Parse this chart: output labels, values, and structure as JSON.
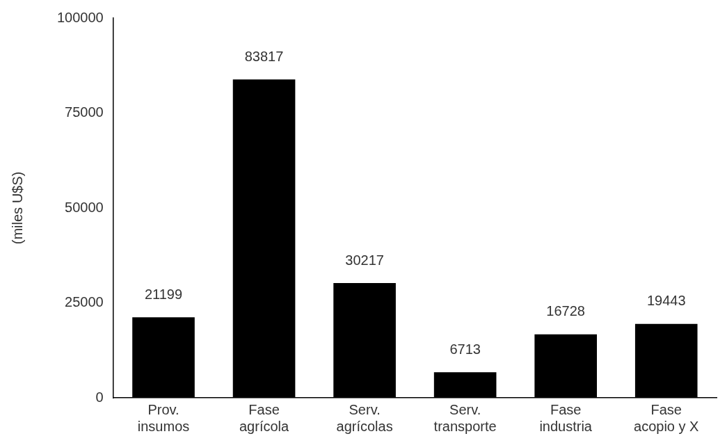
{
  "chart_data": {
    "type": "bar",
    "ylabel": "(miles U$S)",
    "categories": [
      "Prov.\ninsumos",
      "Fase\nagrícola",
      "Serv.\nagrícolas",
      "Serv.\ntransporte",
      "Fase\nindustria",
      "Fase\nacopio y X"
    ],
    "values": [
      21199,
      83817,
      30217,
      6713,
      16728,
      19443
    ],
    "color": "#000000",
    "ylim": [
      0,
      100000
    ],
    "yticks": [
      0,
      25000,
      50000,
      75000,
      100000
    ],
    "grid": false,
    "legend": false,
    "data_labels": true
  }
}
